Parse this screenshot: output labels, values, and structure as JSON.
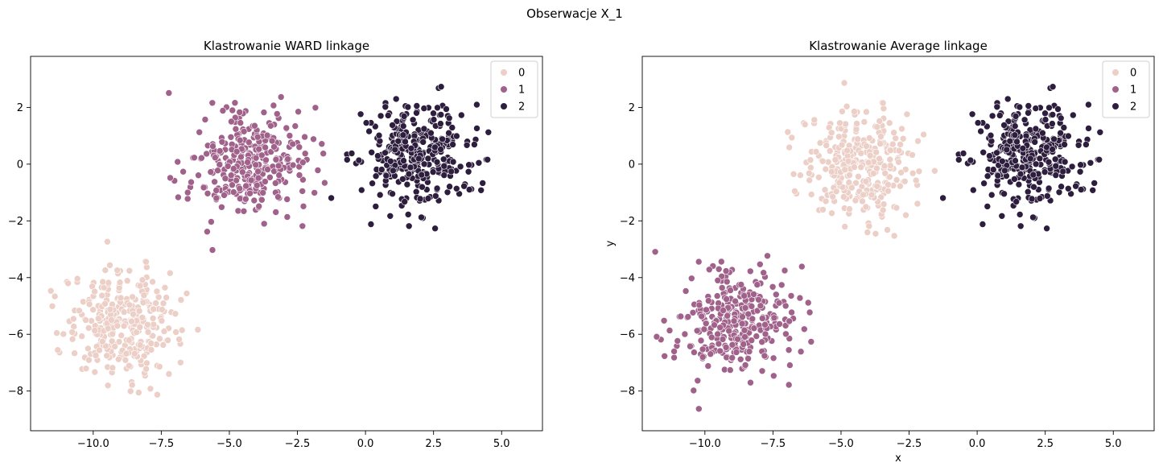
{
  "figure": {
    "suptitle": "Obserwacje X_1"
  },
  "chart_data": [
    {
      "type": "scatter",
      "title": "Klastrowanie WARD linkage",
      "xlabel": "",
      "ylabel": "",
      "xlim": [
        -12.3,
        6.5
      ],
      "ylim": [
        -9.4,
        3.8
      ],
      "xticks": [
        -10.0,
        -7.5,
        -5.0,
        -2.5,
        0.0,
        2.5,
        5.0
      ],
      "xticklabels": [
        "−10.0",
        "−7.5",
        "−5.0",
        "−2.5",
        "0.0",
        "2.5",
        "5.0"
      ],
      "yticks": [
        -8,
        -6,
        -4,
        -2,
        0,
        2
      ],
      "yticklabels": [
        "−8",
        "−6",
        "−4",
        "−2",
        "0",
        "2"
      ],
      "grid": false,
      "legend": {
        "placement": "top-right",
        "entries": [
          "0",
          "1",
          "2"
        ]
      },
      "series": [
        {
          "name": "0",
          "color": "#eccfc7",
          "center": [
            -8.9,
            -5.6
          ],
          "spread": [
            1.05,
            0.95
          ]
        },
        {
          "name": "1",
          "color": "#a0618a",
          "center": [
            -4.3,
            0.0
          ],
          "spread": [
            1.05,
            0.95
          ]
        },
        {
          "name": "2",
          "color": "#2d1e3e",
          "center": [
            1.9,
            0.3
          ],
          "spread": [
            1.05,
            0.95
          ]
        }
      ]
    },
    {
      "type": "scatter",
      "title": "Klastrowanie Average linkage",
      "xlabel": "x",
      "ylabel": "y",
      "xlim": [
        -12.3,
        6.5
      ],
      "ylim": [
        -9.4,
        3.8
      ],
      "xticks": [
        -10.0,
        -7.5,
        -5.0,
        -2.5,
        0.0,
        2.5,
        5.0
      ],
      "xticklabels": [
        "−10.0",
        "−7.5",
        "−5.0",
        "−2.5",
        "0.0",
        "2.5",
        "5.0"
      ],
      "yticks": [
        -8,
        -6,
        -4,
        -2,
        0,
        2
      ],
      "yticklabels": [
        "−8",
        "−6",
        "−4",
        "−2",
        "0",
        "2"
      ],
      "grid": false,
      "legend": {
        "placement": "top-right",
        "entries": [
          "0",
          "1",
          "2"
        ]
      },
      "series": [
        {
          "name": "0",
          "color": "#eccfc7",
          "center": [
            -4.3,
            0.0
          ],
          "spread": [
            1.05,
            0.95
          ]
        },
        {
          "name": "1",
          "color": "#a0618a",
          "center": [
            -8.9,
            -5.6
          ],
          "spread": [
            1.05,
            0.95
          ]
        },
        {
          "name": "2",
          "color": "#2d1e3e",
          "center": [
            1.9,
            0.3
          ],
          "spread": [
            1.05,
            0.95
          ]
        }
      ]
    }
  ]
}
